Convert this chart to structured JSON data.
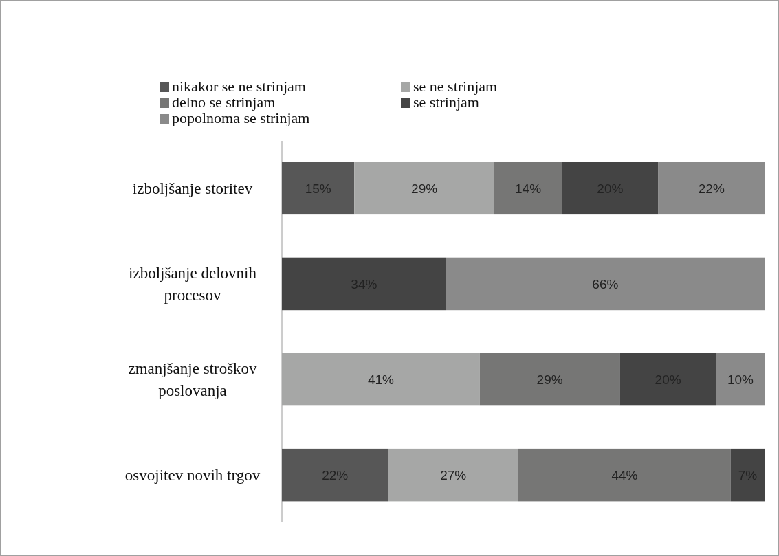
{
  "chart_data": {
    "type": "bar",
    "orientation": "horizontal",
    "stacked": true,
    "legend": "top",
    "tick_labels": "y",
    "xlim": [
      0,
      100
    ],
    "categories": [
      "izboljšanje storitev",
      "izboljšanje delovnih procesov",
      "zmanjšanje stroškov poslovanja",
      "osvojitev novih trgov"
    ],
    "series": [
      {
        "name": "nikakor se ne strinjam",
        "color": "#575757",
        "values": [
          15,
          null,
          null,
          22
        ],
        "value_labels": [
          "15%",
          null,
          null,
          "22%"
        ]
      },
      {
        "name": "se ne strinjam",
        "color": "#a6a7a6",
        "values": [
          29,
          null,
          41,
          27
        ],
        "value_labels": [
          "29%",
          null,
          "41%",
          "27%"
        ]
      },
      {
        "name": "delno se strinjam",
        "color": "#767675",
        "values": [
          14,
          null,
          29,
          44
        ],
        "value_labels": [
          "14%",
          null,
          "29%",
          "44%"
        ]
      },
      {
        "name": "se strinjam",
        "color": "#444444",
        "values": [
          20,
          34,
          20,
          7
        ],
        "value_labels": [
          "20%",
          "34%",
          "20%",
          "7%"
        ]
      },
      {
        "name": "popolnoma se strinjam",
        "color": "#8a8a8a",
        "values": [
          22,
          66,
          10,
          null
        ],
        "value_labels": [
          "22%",
          "66%",
          "10%",
          null
        ]
      }
    ]
  }
}
